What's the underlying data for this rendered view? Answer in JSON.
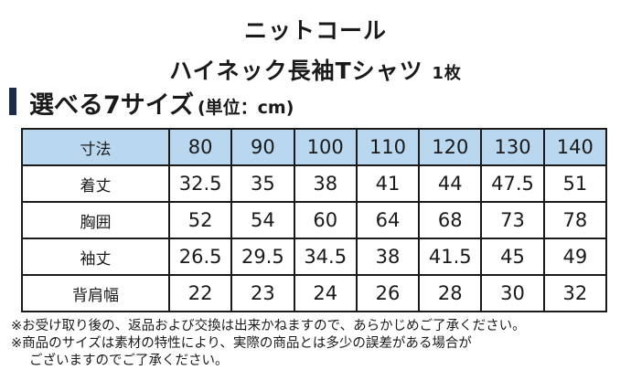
{
  "title_line1": "ニットコール",
  "title_line2": "ハイネック長袖Tシャツ",
  "title_line2_suffix": "1枚",
  "heading": "選べる7サイズ",
  "heading_unit": "(単位：cm)",
  "table": {
    "corner": "寸法",
    "sizes": [
      "80",
      "90",
      "100",
      "110",
      "120",
      "130",
      "140"
    ],
    "rows": [
      {
        "label": "着丈",
        "values": [
          "32.5",
          "35",
          "38",
          "41",
          "44",
          "47.5",
          "51"
        ]
      },
      {
        "label": "胸囲",
        "values": [
          "52",
          "54",
          "60",
          "64",
          "68",
          "73",
          "78"
        ]
      },
      {
        "label": "袖丈",
        "values": [
          "26.5",
          "29.5",
          "34.5",
          "38",
          "41.5",
          "45",
          "49"
        ]
      },
      {
        "label": "背肩幅",
        "values": [
          "22",
          "23",
          "24",
          "26",
          "28",
          "30",
          "32"
        ]
      }
    ]
  },
  "notes": [
    "※お受け取り後の、返品および交換は出来かねますので、あらかじめご了承ください。",
    "※商品のサイズは素材の特性により、実際の商品とは多少の誤差がある場合が",
    "ございますのでご了承ください。"
  ],
  "colors": {
    "header_bg": "#b9d7ee",
    "accent_bar": "#1d2a4a"
  }
}
